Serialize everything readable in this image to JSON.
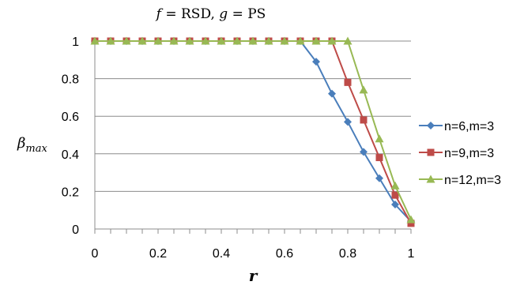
{
  "chart_data": {
    "type": "line",
    "title": {
      "f": "f",
      "eq1": " = RSD, ",
      "g": "g",
      "eq2": " = PS"
    },
    "xlabel": "r",
    "ylabel": {
      "main": "β",
      "sub": "max"
    },
    "xlim": [
      0,
      1
    ],
    "ylim": [
      0,
      1
    ],
    "xticks": [
      0,
      0.2,
      0.4,
      0.6,
      0.8,
      1
    ],
    "xtick_labels": [
      "0",
      "0.2",
      "0.4",
      "0.6",
      "0.8",
      "1"
    ],
    "yticks": [
      0,
      0.2,
      0.4,
      0.6,
      0.8,
      1
    ],
    "ytick_labels": [
      "0",
      "0.2",
      "0.4",
      "0.6",
      "0.8",
      "1"
    ],
    "grid": "horizontal",
    "legend_position": "right",
    "x": [
      0,
      0.05,
      0.1,
      0.15,
      0.2,
      0.25,
      0.3,
      0.35,
      0.4,
      0.45,
      0.5,
      0.55,
      0.6,
      0.65,
      0.7,
      0.75,
      0.8,
      0.85,
      0.9,
      0.95,
      1
    ],
    "series": [
      {
        "name": "n=6,m=3",
        "color": "#4a7ebb",
        "marker": "diamond",
        "x": [
          0,
          0.05,
          0.1,
          0.15,
          0.2,
          0.25,
          0.3,
          0.35,
          0.4,
          0.45,
          0.5,
          0.55,
          0.6,
          0.65,
          0.7,
          0.75,
          0.8,
          0.85,
          0.9,
          0.95,
          1
        ],
        "values": [
          1,
          1,
          1,
          1,
          1,
          1,
          1,
          1,
          1,
          1,
          1,
          1,
          1,
          1,
          0.89,
          0.72,
          0.57,
          0.41,
          0.27,
          0.13,
          0.04
        ]
      },
      {
        "name": "n=9,m=3",
        "color": "#be4b48",
        "marker": "square",
        "x": [
          0,
          0.05,
          0.1,
          0.15,
          0.2,
          0.25,
          0.3,
          0.35,
          0.4,
          0.45,
          0.5,
          0.55,
          0.6,
          0.65,
          0.7,
          0.75,
          0.8,
          0.85,
          0.9,
          0.95,
          1
        ],
        "values": [
          1,
          1,
          1,
          1,
          1,
          1,
          1,
          1,
          1,
          1,
          1,
          1,
          1,
          1,
          1,
          1,
          0.78,
          0.58,
          0.38,
          0.18,
          0.03
        ]
      },
      {
        "name": "n=12,m=3",
        "color": "#98b954",
        "marker": "triangle",
        "x": [
          0,
          0.05,
          0.1,
          0.15,
          0.2,
          0.25,
          0.3,
          0.35,
          0.4,
          0.45,
          0.5,
          0.55,
          0.6,
          0.65,
          0.7,
          0.75,
          0.8,
          0.85,
          0.9,
          0.95,
          1
        ],
        "values": [
          1,
          1,
          1,
          1,
          1,
          1,
          1,
          1,
          1,
          1,
          1,
          1,
          1,
          1,
          1,
          1,
          1,
          0.74,
          0.48,
          0.23,
          0.05
        ]
      }
    ]
  }
}
